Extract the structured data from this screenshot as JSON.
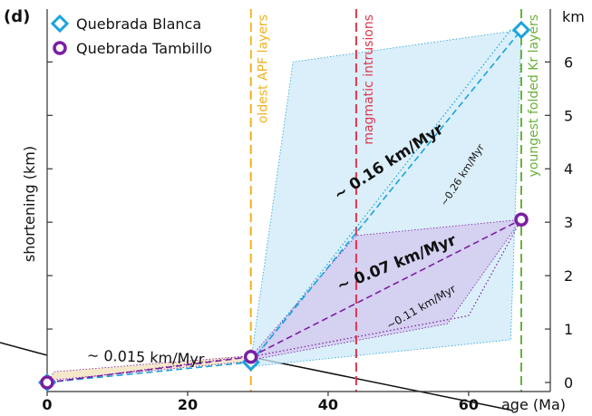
{
  "chart_data": {
    "type": "line",
    "panel_label": "(d)",
    "xlabel": "age (Ma)",
    "ylabel": "shortening (km)",
    "y_unit_label": "km",
    "xlim": [
      0,
      70
    ],
    "ylim": [
      0,
      6.6
    ],
    "x_ticks": [
      0,
      20,
      40,
      60
    ],
    "y_ticks_right": [
      0,
      1,
      2,
      3,
      4,
      5,
      6
    ],
    "colors": {
      "blanca": "#1aa3dc",
      "tambillo": "#7a1fa2",
      "apf": "#f0b21a",
      "intrusion": "#e0364d",
      "kr": "#6ab23a",
      "early_band": "#f4e6c4",
      "blanca_band": "#cfeaf8",
      "tambillo_band": "#d3c4ec"
    },
    "legend": {
      "placement": "top-left",
      "entries": [
        {
          "label": "Quebrada Blanca",
          "marker": "diamond-icon",
          "series": "blanca"
        },
        {
          "label": "Quebrada Tambillo",
          "marker": "circle-icon",
          "series": "tambillo"
        }
      ]
    },
    "series": [
      {
        "name": "Quebrada Blanca",
        "marker": "diamond",
        "points": [
          {
            "x": 0,
            "y": 0
          },
          {
            "x": 29,
            "y": 0.38
          },
          {
            "x": 67.5,
            "y": 6.6
          }
        ]
      },
      {
        "name": "Quebrada Tambillo",
        "marker": "circle",
        "points": [
          {
            "x": 0,
            "y": 0
          },
          {
            "x": 29,
            "y": 0.48
          },
          {
            "x": 67.5,
            "y": 3.05
          }
        ]
      }
    ],
    "event_lines": [
      {
        "x": 29,
        "label": "oldest  APF  layers",
        "color_key": "apf"
      },
      {
        "x": 44,
        "label": "magmatic  intrusions",
        "color_key": "intrusion"
      },
      {
        "x": 67.5,
        "label": "youngest  folded  Kr  layers",
        "color_key": "kr"
      }
    ],
    "bands": [
      {
        "key": "early",
        "polygon": [
          [
            0,
            0
          ],
          [
            1,
            0.2
          ],
          [
            29,
            0.5
          ],
          [
            29,
            0.4
          ],
          [
            1,
            0.05
          ]
        ]
      },
      {
        "key": "blanca",
        "polygon": [
          [
            29,
            0.4
          ],
          [
            35,
            6.0
          ],
          [
            67.5,
            6.6
          ],
          [
            66,
            0.8
          ],
          [
            29,
            0.3
          ]
        ]
      },
      {
        "key": "tambillo",
        "polygon": [
          [
            29,
            0.48
          ],
          [
            44,
            2.75
          ],
          [
            67.5,
            3.05
          ],
          [
            57,
            1.1
          ],
          [
            29,
            0.42
          ]
        ]
      }
    ],
    "rate_annotations": [
      {
        "text": "~  0.015 km/Myr",
        "x": 14,
        "y": 0.38,
        "angle": 2,
        "size": 16,
        "weight": "normal"
      },
      {
        "text": "~ 0.16 km/Myr",
        "x": 49,
        "y": 4.05,
        "angle": -33,
        "size": 17,
        "weight": "bold"
      },
      {
        "text": "~0.26 km/Myr",
        "x": 59.5,
        "y": 3.85,
        "angle": -57,
        "size": 11,
        "weight": "normal"
      },
      {
        "text": "~ 0.07 km/Myr",
        "x": 50,
        "y": 2.15,
        "angle": -22,
        "size": 17,
        "weight": "bold"
      },
      {
        "text": "~0.11 km/Myr",
        "x": 53.5,
        "y": 1.35,
        "angle": -30,
        "size": 12,
        "weight": "normal"
      }
    ],
    "rate_lines": [
      {
        "from": [
          29,
          0.38
        ],
        "to": [
          67.5,
          6.6
        ],
        "color_key": "blanca",
        "style": "dashed"
      },
      {
        "from": [
          29,
          0.38
        ],
        "to": [
          66,
          6.6
        ],
        "color_key": "blanca",
        "style": "dotted"
      },
      {
        "from": [
          0,
          0
        ],
        "to": [
          29,
          0.38
        ],
        "color_key": "blanca",
        "style": "dashed"
      },
      {
        "from": [
          29,
          0.48
        ],
        "to": [
          67.5,
          3.05
        ],
        "color_key": "tambillo",
        "style": "dashed"
      },
      {
        "from": [
          29,
          0.48
        ],
        "to": [
          67.5,
          3.05
        ],
        "color_key": "tambillo",
        "style": "dotted",
        "via": [
          60,
          1.25
        ]
      },
      {
        "from": [
          0,
          0
        ],
        "to": [
          29,
          0.48
        ],
        "color_key": "tambillo",
        "style": "dashed"
      },
      {
        "from": [
          0,
          0
        ],
        "to": [
          29,
          0.5
        ],
        "color_key": "tambillo",
        "style": "dotted"
      }
    ]
  }
}
